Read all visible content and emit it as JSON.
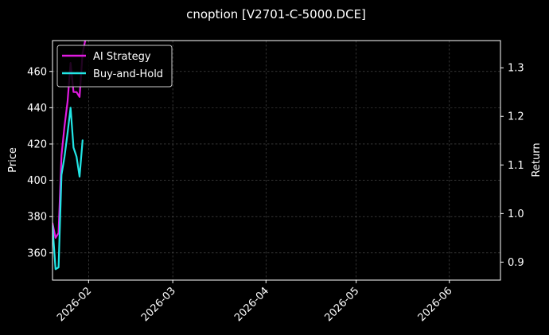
{
  "chart_data": {
    "type": "line",
    "title": "cnoption [V2701-C-5000.DCE]",
    "xlabel": "",
    "ylabel_left": "Price",
    "ylabel_right": "Return",
    "x_ticks": [
      "2026-02",
      "2026-03",
      "2026-04",
      "2026-05",
      "2026-06"
    ],
    "x_tick_dates": [
      "2026-02-01",
      "2026-03-01",
      "2026-04-01",
      "2026-05-01",
      "2026-06-01"
    ],
    "xlim": [
      "2026-01-20",
      "2026-06-18"
    ],
    "ylim_left": [
      345,
      477
    ],
    "ylim_right": [
      0.863,
      1.356
    ],
    "y_ticks_left": [
      360,
      380,
      400,
      420,
      440,
      460
    ],
    "y_ticks_right": [
      0.9,
      1.0,
      1.1,
      1.2,
      1.3
    ],
    "grid": true,
    "legend_position": "top-left",
    "series": [
      {
        "name": "AI Strategy",
        "color": "#e01be0",
        "axis": "right",
        "x": [
          "2026-01-20",
          "2026-01-21",
          "2026-01-22",
          "2026-01-23",
          "2026-01-24",
          "2026-01-25",
          "2026-01-26",
          "2026-01-27",
          "2026-01-28",
          "2026-01-29",
          "2026-01-30",
          "2026-01-31"
        ],
        "values": [
          0.98,
          0.95,
          0.96,
          1.12,
          1.18,
          1.23,
          1.31,
          1.25,
          1.25,
          1.24,
          1.33,
          1.36
        ]
      },
      {
        "name": "Buy-and-Hold",
        "color": "#22e5e5",
        "axis": "left",
        "x": [
          "2026-01-20",
          "2026-01-21",
          "2026-01-22",
          "2026-01-23",
          "2026-01-24",
          "2026-01-25",
          "2026-01-26",
          "2026-01-27",
          "2026-01-28",
          "2026-01-29",
          "2026-01-30",
          "2026-01-31"
        ],
        "values": [
          375,
          351,
          352,
          403,
          413,
          426,
          440,
          418,
          413,
          402,
          422,
          null
        ]
      }
    ]
  }
}
